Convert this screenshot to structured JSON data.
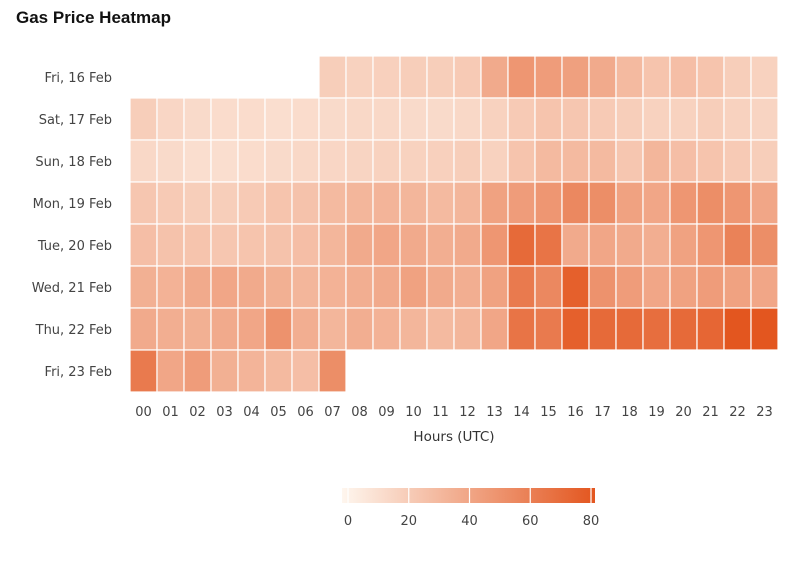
{
  "title": "Gas Price Heatmap",
  "chart_data": {
    "type": "heatmap",
    "title": "Gas Price Heatmap",
    "xlabel": "Hours (UTC)",
    "ylabel": "",
    "x": [
      "00",
      "01",
      "02",
      "03",
      "04",
      "05",
      "06",
      "07",
      "08",
      "09",
      "10",
      "11",
      "12",
      "13",
      "14",
      "15",
      "16",
      "17",
      "18",
      "19",
      "20",
      "21",
      "22",
      "23"
    ],
    "y": [
      "Fri, 16 Feb",
      "Sat, 17 Feb",
      "Sun, 18 Feb",
      "Mon, 19 Feb",
      "Tue, 20 Feb",
      "Wed, 21 Feb",
      "Thu, 22 Feb",
      "Fri, 23 Feb"
    ],
    "values": [
      [
        null,
        null,
        null,
        null,
        null,
        null,
        null,
        20,
        18,
        19,
        20,
        20,
        22,
        38,
        48,
        45,
        43,
        38,
        30,
        25,
        28,
        25,
        20,
        18
      ],
      [
        20,
        16,
        14,
        13,
        13,
        12,
        13,
        14,
        15,
        15,
        14,
        14,
        15,
        18,
        22,
        25,
        24,
        22,
        20,
        18,
        18,
        20,
        18,
        17
      ],
      [
        15,
        14,
        12,
        12,
        13,
        14,
        15,
        16,
        17,
        18,
        18,
        19,
        20,
        18,
        25,
        30,
        30,
        30,
        24,
        32,
        28,
        25,
        22,
        20
      ],
      [
        24,
        22,
        20,
        20,
        22,
        25,
        26,
        30,
        32,
        33,
        32,
        30,
        32,
        42,
        45,
        48,
        55,
        52,
        42,
        40,
        48,
        52,
        48,
        40
      ],
      [
        28,
        26,
        25,
        24,
        25,
        26,
        28,
        32,
        38,
        40,
        38,
        36,
        38,
        48,
        70,
        65,
        38,
        40,
        38,
        36,
        42,
        48,
        58,
        52
      ],
      [
        35,
        34,
        38,
        40,
        38,
        35,
        32,
        34,
        36,
        38,
        42,
        38,
        36,
        42,
        62,
        55,
        75,
        50,
        45,
        40,
        42,
        45,
        42,
        40
      ],
      [
        38,
        36,
        35,
        38,
        40,
        50,
        36,
        32,
        36,
        34,
        32,
        30,
        32,
        40,
        65,
        62,
        75,
        70,
        70,
        68,
        70,
        72,
        80,
        85
      ],
      [
        62,
        40,
        45,
        35,
        33,
        30,
        28,
        52,
        null,
        null,
        null,
        null,
        null,
        null,
        null,
        null,
        null,
        null,
        null,
        null,
        null,
        null,
        null,
        null
      ]
    ],
    "colorscale": {
      "min": 0,
      "max": 80,
      "low": "#fef6ee",
      "high": "#e3561f"
    },
    "colorbar": {
      "ticks": [
        0,
        20,
        40,
        60,
        80
      ]
    },
    "grid": false
  }
}
